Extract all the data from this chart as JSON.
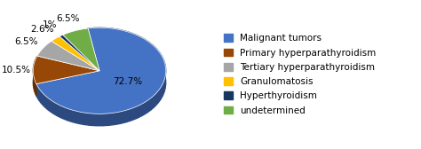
{
  "labels": [
    "Malignant tumors",
    "Primary hyperparathyroidism",
    "Tertiary hyperparathyroidism",
    "Granulomatosis",
    "Hyperthyroidism",
    "undetermined"
  ],
  "values": [
    72.7,
    10.5,
    6.5,
    2.6,
    1.0,
    6.5
  ],
  "colors": [
    "#4472C4",
    "#974706",
    "#A6A6A6",
    "#FFC000",
    "#17375E",
    "#70AD47"
  ],
  "pct_labels": [
    "72.7%",
    "10.5%",
    "6.5%",
    "2.6%",
    "1%",
    "6.5%"
  ],
  "startangle": 90,
  "legend_fontsize": 7.5,
  "pct_fontsize": 7.5,
  "figsize": [
    4.74,
    1.68
  ],
  "dpi": 100
}
